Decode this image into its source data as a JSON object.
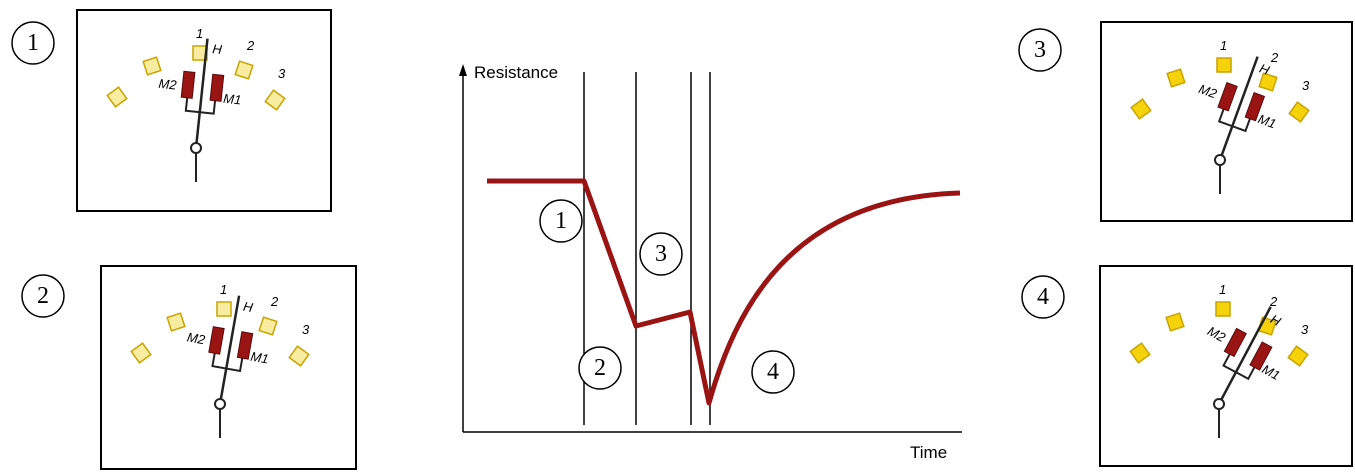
{
  "panels": [
    {
      "number": "1",
      "contacts": [
        "1",
        "2",
        "3"
      ],
      "h": "H",
      "m1": "M1",
      "m2": "M2"
    },
    {
      "number": "2",
      "contacts": [
        "1",
        "2",
        "3"
      ],
      "h": "H",
      "m1": "M1",
      "m2": "M2"
    },
    {
      "number": "3",
      "contacts": [
        "1",
        "2",
        "3"
      ],
      "h": "H",
      "m1": "M1",
      "m2": "M2"
    },
    {
      "number": "4",
      "contacts": [
        "1",
        "2",
        "3"
      ],
      "h": "H",
      "m1": "M1",
      "m2": "M2"
    }
  ],
  "graph": {
    "y_axis_label": "Resistance",
    "x_axis_label": "Time",
    "phases": [
      "1",
      "2",
      "3",
      "4"
    ]
  }
}
